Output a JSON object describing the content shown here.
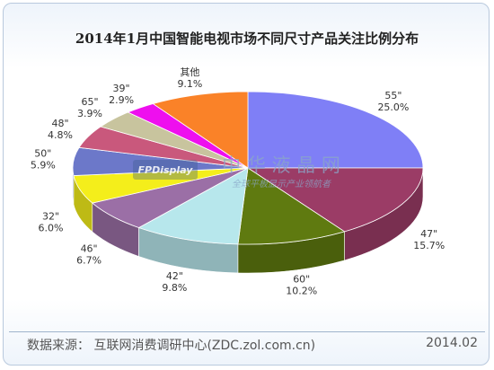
{
  "title": "2014年1月中国智能电视市场不同尺寸产品关注比例分布",
  "chart_data": {
    "type": "pie",
    "categories": [
      "55\"",
      "47\"",
      "60\"",
      "42\"",
      "46\"",
      "32\"",
      "50\"",
      "48\"",
      "65\"",
      "39\"",
      "其他"
    ],
    "values": [
      25.0,
      15.7,
      10.2,
      9.8,
      6.7,
      6.0,
      5.9,
      4.8,
      3.9,
      2.9,
      9.1
    ],
    "value_labels": [
      "25.0%",
      "15.7%",
      "10.2%",
      "9.8%",
      "6.7%",
      "6.0%",
      "5.9%",
      "4.8%",
      "3.9%",
      "2.9%",
      "9.1%"
    ],
    "colors": [
      "#7f7ff6",
      "#9b3c66",
      "#5f7a10",
      "#b7e7ec",
      "#9b6fa6",
      "#f4ee1b",
      "#6c78c9",
      "#c9587c",
      "#c8c49e",
      "#ee0fee",
      "#fa8228"
    ]
  },
  "watermark": {
    "badge": "FPDisplay",
    "name": "中 华 液 晶 网",
    "subtitle": "全球平板显示产业领航者"
  },
  "footer": {
    "source": "数据来源：  互联网消费调研中心(ZDC.zol.com.cn)",
    "date": "2014.02"
  }
}
